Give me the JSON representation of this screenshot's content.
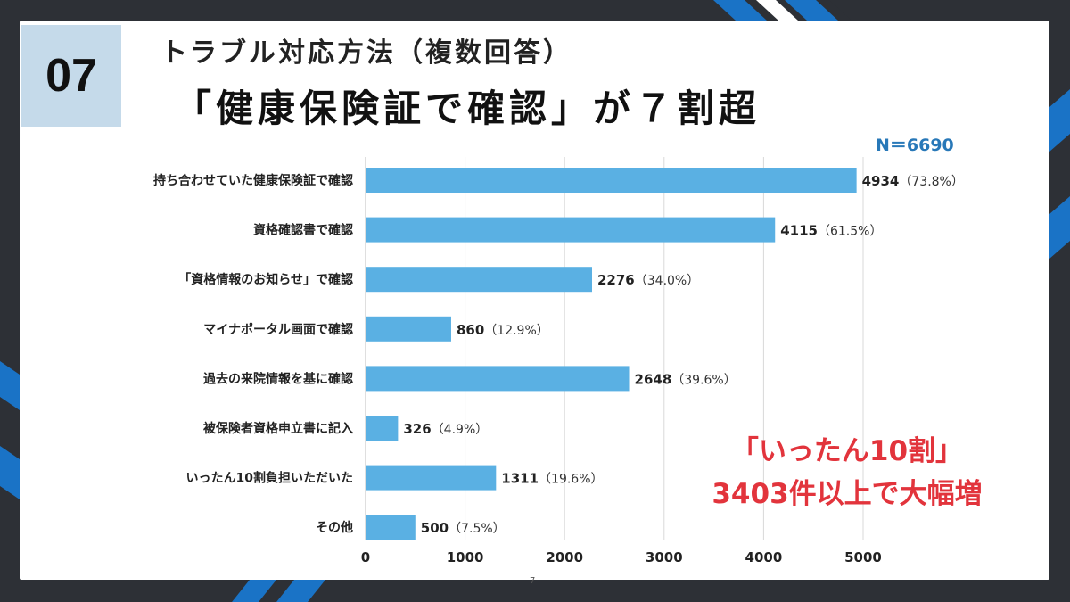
{
  "badge": {
    "number": "07"
  },
  "header": {
    "title_line1": "トラブル対応方法（複数回答）",
    "title_line2": "「健康保険証で確認」が７割超"
  },
  "sample_size": "N＝6690",
  "callout": {
    "line1": "「いったん10割」",
    "line2": "3403件以上で大幅増"
  },
  "page_number": "7",
  "colors": {
    "bar": "#5ab0e3",
    "accent_blue": "#2878b8",
    "callout_red": "#e2343c",
    "frame_dark": "#2d3036",
    "badge_bg": "#c5daea"
  },
  "chart_data": {
    "type": "bar",
    "orientation": "horizontal",
    "categories": [
      "持ち合わせていた健康保険証で確認",
      "資格確認書で確認",
      "「資格情報のお知らせ」で確認",
      "マイナポータル画面で確認",
      "過去の来院情報を基に確認",
      "被保険者資格申立書に記入",
      "いったん10割負担いただいた",
      "その他"
    ],
    "values": [
      4934,
      4115,
      2276,
      860,
      2648,
      326,
      1311,
      500
    ],
    "value_labels": [
      "4934",
      "4115",
      "2276",
      "860",
      "2648",
      "326",
      "1311",
      "500"
    ],
    "percent_labels": [
      "（73.8%）",
      "（61.5%）",
      "（34.0%）",
      "（12.9%）",
      "（39.6%）",
      "（4.9%）",
      "（19.6%）",
      "（7.5%）"
    ],
    "xlim": [
      0,
      5000
    ],
    "x_ticks": [
      "0",
      "1000",
      "2000",
      "3000",
      "4000",
      "5000"
    ],
    "grid": true
  }
}
